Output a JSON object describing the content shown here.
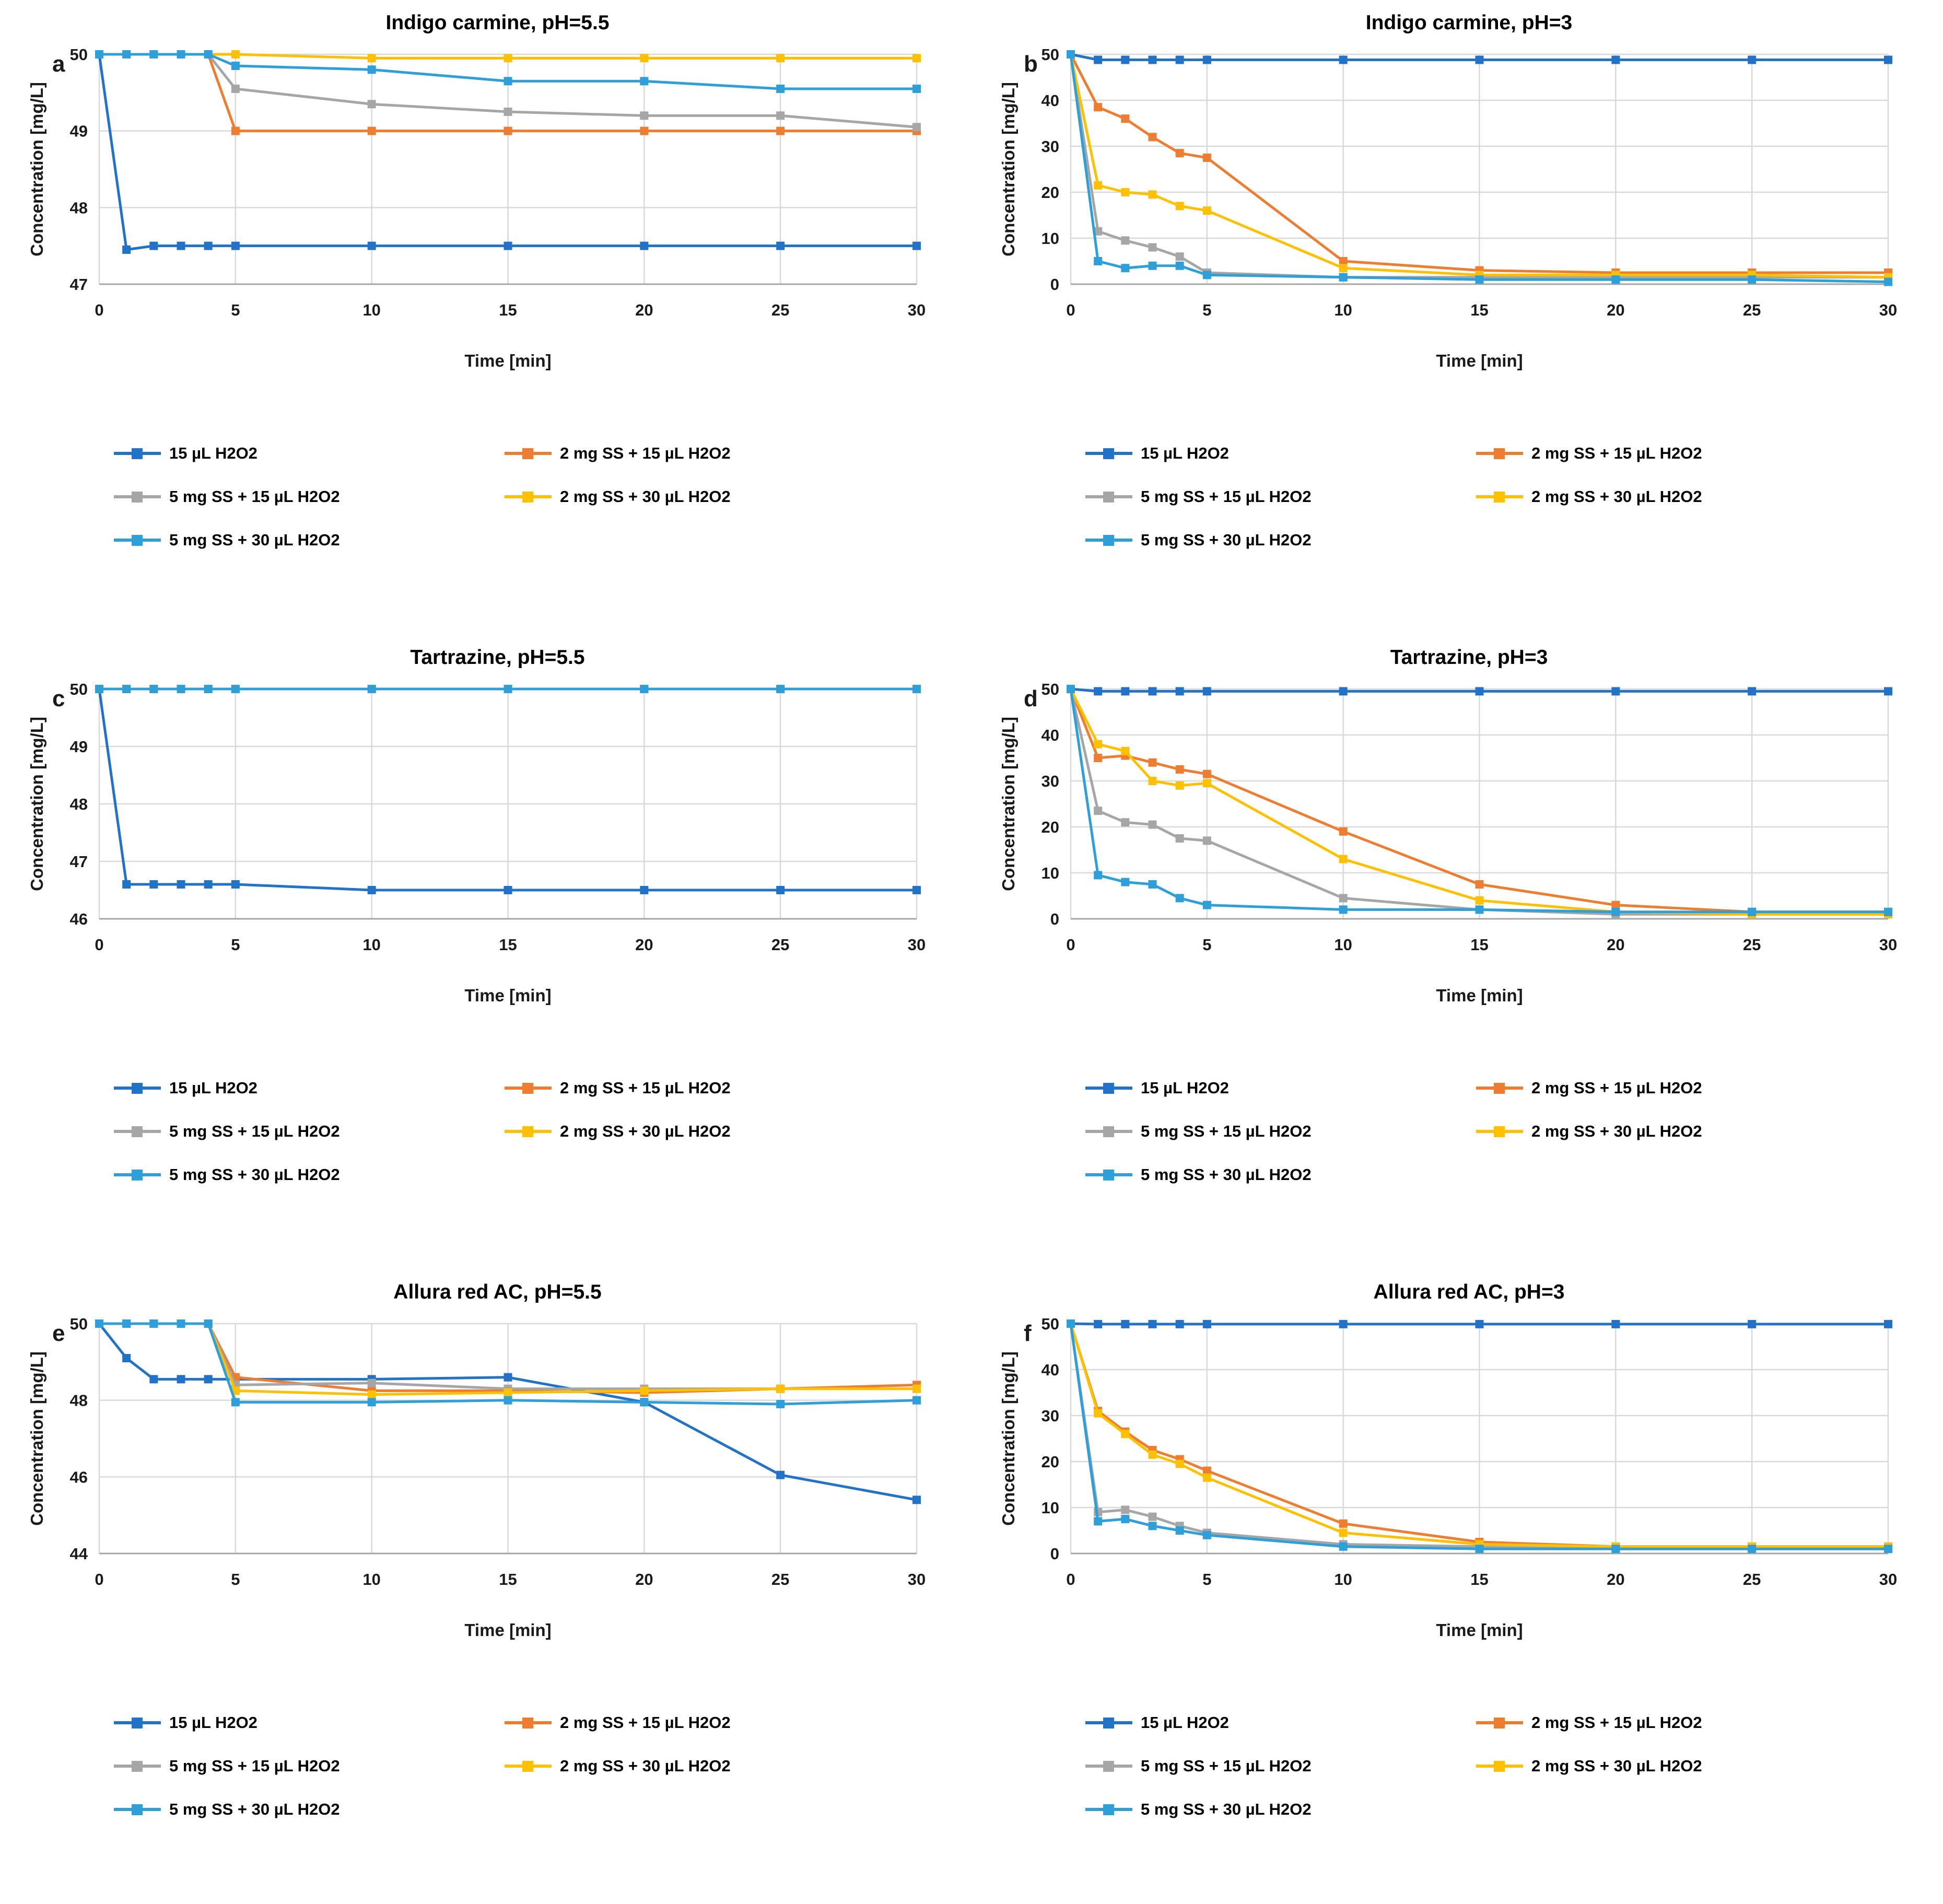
{
  "figure": {
    "xlabel": "Time [min]",
    "ylabel": "Concentration [mg/L]"
  },
  "colors": {
    "series": [
      "#2272C8",
      "#ED7D31",
      "#A6A6A6",
      "#FFC000",
      "#2E9FD9"
    ],
    "grid": "#D9D9D9",
    "axis_line": "#A6A6A6",
    "tick_text": "#1a1a1a"
  },
  "legend": {
    "labels": [
      "15 µL H2O2",
      "2 mg SS + 15 µL H2O2",
      "5 mg SS + 15 µL H2O2",
      "2 mg SS + 30 µL H2O2",
      "5 mg SS + 30 µL H2O2"
    ]
  },
  "chart_data": [
    {
      "type": "line",
      "letter": "a",
      "title": "Indigo carmine, pH=5.5",
      "xlabel": "Time [min]",
      "ylabel": "Concentration [mg/L]",
      "x": [
        0,
        1,
        2,
        3,
        4,
        5,
        10,
        15,
        20,
        25,
        30
      ],
      "xticks": [
        0,
        5,
        10,
        15,
        20,
        25,
        30
      ],
      "ylim": [
        47,
        50
      ],
      "yticks": [
        47,
        48,
        49,
        50
      ],
      "grid": true,
      "legend_position": "bottom-left-two-columns",
      "series": [
        {
          "name": "15 µL H2O2",
          "values": [
            50,
            47.45,
            47.5,
            47.5,
            47.5,
            47.5,
            47.5,
            47.5,
            47.5,
            47.5,
            47.5
          ]
        },
        {
          "name": "2 mg SS + 15 µL H2O2",
          "values": [
            50,
            50,
            50,
            50,
            50,
            49.0,
            49.0,
            49.0,
            49.0,
            49.0,
            49.0
          ]
        },
        {
          "name": "5 mg SS + 15 µL H2O2",
          "values": [
            50,
            50,
            50,
            50,
            50,
            49.55,
            49.35,
            49.25,
            49.2,
            49.2,
            49.05
          ]
        },
        {
          "name": "2 mg SS + 30 µL H2O2",
          "values": [
            50,
            50,
            50,
            50,
            50,
            50,
            49.95,
            49.95,
            49.95,
            49.95,
            49.95
          ]
        },
        {
          "name": "5 mg SS + 30 µL H2O2",
          "values": [
            50,
            50,
            50,
            50,
            50,
            49.85,
            49.8,
            49.65,
            49.65,
            49.55,
            49.55
          ]
        }
      ]
    },
    {
      "type": "line",
      "letter": "b",
      "title": "Indigo carmine, pH=3",
      "xlabel": "Time [min]",
      "ylabel": "Concentration [mg/L]",
      "x": [
        0,
        1,
        2,
        3,
        4,
        5,
        10,
        15,
        20,
        25,
        30
      ],
      "xticks": [
        0,
        5,
        10,
        15,
        20,
        25,
        30
      ],
      "ylim": [
        0,
        50
      ],
      "yticks": [
        0,
        10,
        20,
        30,
        40,
        50
      ],
      "grid": true,
      "legend_position": "bottom-left-two-columns",
      "series": [
        {
          "name": "15 µL H2O2",
          "values": [
            50,
            48.8,
            48.8,
            48.8,
            48.8,
            48.8,
            48.8,
            48.8,
            48.8,
            48.8,
            48.8
          ]
        },
        {
          "name": "2 mg SS + 15 µL H2O2",
          "values": [
            50,
            38.5,
            36,
            32,
            28.5,
            27.5,
            5,
            3,
            2.5,
            2.5,
            2.5
          ]
        },
        {
          "name": "5 mg SS + 15 µL H2O2",
          "values": [
            50,
            11.5,
            9.5,
            8,
            6,
            2.5,
            1.5,
            1.5,
            1.5,
            1.5,
            1.5
          ]
        },
        {
          "name": "2 mg SS + 30 µL H2O2",
          "values": [
            50,
            21.5,
            20,
            19.5,
            17,
            16,
            3.5,
            2,
            2,
            2,
            1.5
          ]
        },
        {
          "name": "5 mg SS + 30 µL H2O2",
          "values": [
            50,
            5,
            3.5,
            4,
            4,
            2,
            1.5,
            1,
            1,
            1,
            0.5
          ]
        }
      ]
    },
    {
      "type": "line",
      "letter": "c",
      "title": "Tartrazine, pH=5.5",
      "xlabel": "Time [min]",
      "ylabel": "Concentration [mg/L]",
      "x": [
        0,
        1,
        2,
        3,
        4,
        5,
        10,
        15,
        20,
        25,
        30
      ],
      "xticks": [
        0,
        5,
        10,
        15,
        20,
        25,
        30
      ],
      "ylim": [
        46,
        50
      ],
      "yticks": [
        46,
        47,
        48,
        49,
        50
      ],
      "grid": true,
      "legend_position": "bottom-left-two-columns",
      "series": [
        {
          "name": "15 µL H2O2",
          "values": [
            50,
            46.6,
            46.6,
            46.6,
            46.6,
            46.6,
            46.5,
            46.5,
            46.5,
            46.5,
            46.5
          ]
        },
        {
          "name": "2 mg SS + 15 µL H2O2",
          "values": [
            50,
            50,
            50,
            50,
            50,
            50,
            50,
            50,
            50,
            50,
            50
          ]
        },
        {
          "name": "5 mg SS + 15 µL H2O2",
          "values": [
            50,
            50,
            50,
            50,
            50,
            50,
            50,
            50,
            50,
            50,
            50
          ]
        },
        {
          "name": "2 mg SS + 30 µL H2O2",
          "values": [
            50,
            50,
            50,
            50,
            50,
            50,
            50,
            50,
            50,
            50,
            50
          ]
        },
        {
          "name": "5 mg SS + 30 µL H2O2",
          "values": [
            50,
            50,
            50,
            50,
            50,
            50,
            50,
            50,
            50,
            50,
            50
          ]
        }
      ]
    },
    {
      "type": "line",
      "letter": "d",
      "title": "Tartrazine, pH=3",
      "xlabel": "Time [min]",
      "ylabel": "Concentration [mg/L]",
      "x": [
        0,
        1,
        2,
        3,
        4,
        5,
        10,
        15,
        20,
        25,
        30
      ],
      "xticks": [
        0,
        5,
        10,
        15,
        20,
        25,
        30
      ],
      "ylim": [
        0,
        50
      ],
      "yticks": [
        0,
        10,
        20,
        30,
        40,
        50
      ],
      "grid": true,
      "legend_position": "bottom-left-two-columns",
      "series": [
        {
          "name": "15 µL H2O2",
          "values": [
            50,
            49.5,
            49.5,
            49.5,
            49.5,
            49.5,
            49.5,
            49.5,
            49.5,
            49.5,
            49.5
          ]
        },
        {
          "name": "2 mg SS + 15 µL H2O2",
          "values": [
            50,
            35,
            35.5,
            34,
            32.5,
            31.5,
            19,
            7.5,
            3,
            1.5,
            1.5
          ]
        },
        {
          "name": "5 mg SS + 15 µL H2O2",
          "values": [
            50,
            23.5,
            21,
            20.5,
            17.5,
            17,
            4.5,
            2,
            1,
            1,
            1
          ]
        },
        {
          "name": "2 mg SS + 30 µL H2O2",
          "values": [
            50,
            38,
            36.5,
            30,
            29,
            29.5,
            13,
            4,
            1.5,
            1,
            1
          ]
        },
        {
          "name": "5 mg SS + 30 µL H2O2",
          "values": [
            50,
            9.5,
            8,
            7.5,
            4.5,
            3,
            2,
            2,
            1.5,
            1.5,
            1.5
          ]
        }
      ]
    },
    {
      "type": "line",
      "letter": "e",
      "title": "Allura red AC, pH=5.5",
      "xlabel": "Time [min]",
      "ylabel": "Concentration [mg/L]",
      "x": [
        0,
        1,
        2,
        3,
        4,
        5,
        10,
        15,
        20,
        25,
        30
      ],
      "xticks": [
        0,
        5,
        10,
        15,
        20,
        25,
        30
      ],
      "ylim": [
        44,
        50
      ],
      "yticks": [
        44,
        46,
        48,
        50
      ],
      "grid": true,
      "legend_position": "bottom-left-two-columns",
      "series": [
        {
          "name": "15 µL H2O2",
          "values": [
            50,
            49.1,
            48.55,
            48.55,
            48.55,
            48.55,
            48.55,
            48.6,
            47.95,
            46.05,
            45.4
          ]
        },
        {
          "name": "2 mg SS + 15 µL H2O2",
          "values": [
            50,
            50,
            50,
            50,
            50,
            48.6,
            48.25,
            48.25,
            48.2,
            48.3,
            48.4
          ]
        },
        {
          "name": "5 mg SS + 15 µL H2O2",
          "values": [
            50,
            50,
            50,
            50,
            50,
            48.4,
            48.45,
            48.3,
            48.3,
            48.3,
            48.3
          ]
        },
        {
          "name": "2 mg SS + 30 µL H2O2",
          "values": [
            50,
            50,
            50,
            50,
            50,
            48.25,
            48.15,
            48.2,
            48.25,
            48.3,
            48.3
          ]
        },
        {
          "name": "5 mg SS + 30 µL H2O2",
          "values": [
            50,
            50,
            50,
            50,
            50,
            47.95,
            47.95,
            48,
            47.95,
            47.9,
            48
          ]
        }
      ]
    },
    {
      "type": "line",
      "letter": "f",
      "title": "Allura red AC, pH=3",
      "xlabel": "Time [min]",
      "ylabel": "Concentration [mg/L]",
      "x": [
        0,
        1,
        2,
        3,
        4,
        5,
        10,
        15,
        20,
        25,
        30
      ],
      "xticks": [
        0,
        5,
        10,
        15,
        20,
        25,
        30
      ],
      "ylim": [
        0,
        50
      ],
      "yticks": [
        0,
        10,
        20,
        30,
        40,
        50
      ],
      "grid": true,
      "legend_position": "bottom-left-two-columns",
      "series": [
        {
          "name": "15 µL H2O2",
          "values": [
            50,
            49.9,
            49.9,
            49.9,
            49.9,
            49.9,
            49.9,
            49.9,
            49.9,
            49.9,
            49.9
          ]
        },
        {
          "name": "2 mg SS + 15 µL H2O2",
          "values": [
            50,
            31,
            26.5,
            22.5,
            20.5,
            18,
            6.5,
            2.5,
            1.5,
            1.5,
            1.5
          ]
        },
        {
          "name": "5 mg SS + 15 µL H2O2",
          "values": [
            50,
            9,
            9.5,
            8,
            6,
            4.5,
            2,
            1.5,
            1,
            1,
            1
          ]
        },
        {
          "name": "2 mg SS + 30 µL H2O2",
          "values": [
            50,
            30.5,
            26,
            21.5,
            19.5,
            16.5,
            4.5,
            2,
            1.5,
            1.5,
            1.5
          ]
        },
        {
          "name": "5 mg SS + 30 µL H2O2",
          "values": [
            50,
            7,
            7.5,
            6,
            5,
            4,
            1.5,
            1,
            1,
            1,
            1
          ]
        }
      ]
    }
  ]
}
